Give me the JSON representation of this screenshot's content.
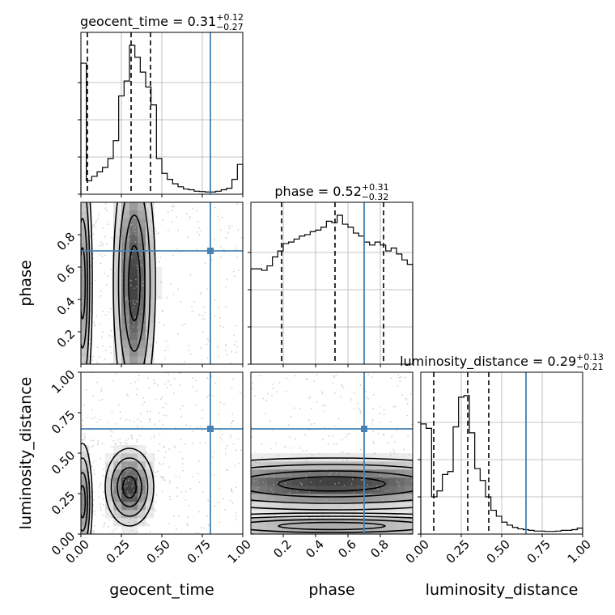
{
  "chart_data": {
    "type": "corner",
    "parameters": [
      {
        "name": "geocent_time",
        "axis_label": "geocent_time",
        "range": [
          0,
          1
        ],
        "ticks": [
          0,
          0.25,
          0.5,
          0.75,
          1
        ],
        "tick_labels": [
          "0.00",
          "0.25",
          "0.50",
          "0.75",
          "1.00"
        ],
        "title_prefix": "geocent_time = ",
        "median_text": "0.31",
        "plus": "+0.12",
        "minus": "−0.27",
        "quantiles": [
          0.04,
          0.31,
          0.43
        ],
        "truth": 0.8,
        "hist": [
          0.88,
          0.09,
          0.12,
          0.15,
          0.18,
          0.24,
          0.36,
          0.66,
          0.76,
          1.0,
          0.92,
          0.82,
          0.72,
          0.6,
          0.24,
          0.14,
          0.1,
          0.07,
          0.05,
          0.035,
          0.03,
          0.02,
          0.018,
          0.015,
          0.015,
          0.02,
          0.03,
          0.04,
          0.1,
          0.2
        ]
      },
      {
        "name": "phase",
        "axis_label": "phase",
        "range": [
          0,
          1
        ],
        "ticks": [
          0.2,
          0.4,
          0.6,
          0.8
        ],
        "tick_labels": [
          "0.2",
          "0.4",
          "0.6",
          "0.8"
        ],
        "title_prefix": "phase = ",
        "median_text": "0.52",
        "plus": "+0.31",
        "minus": "−0.32",
        "quantiles": [
          0.19,
          0.52,
          0.82
        ],
        "truth": 0.7,
        "hist": [
          0.64,
          0.64,
          0.63,
          0.66,
          0.72,
          0.76,
          0.81,
          0.82,
          0.84,
          0.86,
          0.87,
          0.89,
          0.9,
          0.92,
          0.96,
          0.95,
          1.0,
          0.94,
          0.92,
          0.88,
          0.86,
          0.82,
          0.8,
          0.82,
          0.8,
          0.76,
          0.78,
          0.74,
          0.7,
          0.67
        ]
      },
      {
        "name": "luminosity_distance",
        "axis_label": "luminosity_distance",
        "range": [
          0,
          1
        ],
        "ticks": [
          0,
          0.25,
          0.5,
          0.75,
          1
        ],
        "tick_labels": [
          "0.00",
          "0.25",
          "0.50",
          "0.75",
          "1.00"
        ],
        "title_prefix": "luminosity_distance = ",
        "median_text": "0.29",
        "plus": "+0.13",
        "minus": "−0.21",
        "quantiles": [
          0.08,
          0.29,
          0.42
        ],
        "truth": 0.65,
        "hist": [
          0.74,
          0.71,
          0.25,
          0.29,
          0.4,
          0.42,
          0.72,
          0.92,
          0.93,
          0.68,
          0.44,
          0.36,
          0.25,
          0.16,
          0.12,
          0.08,
          0.06,
          0.045,
          0.035,
          0.03,
          0.025,
          0.02,
          0.02,
          0.018,
          0.018,
          0.02,
          0.025,
          0.025,
          0.03,
          0.04
        ]
      }
    ],
    "joint": [
      {
        "x": "geocent_time",
        "y": "phase",
        "modes": [
          {
            "cx": 0.01,
            "cy": 0.5,
            "sx": 0.03,
            "sy": 0.4,
            "w": 0.6
          },
          {
            "cx": 0.33,
            "cy": 0.5,
            "sx": 0.065,
            "sy": 0.42,
            "w": 1.0
          }
        ]
      },
      {
        "x": "geocent_time",
        "y": "luminosity_distance",
        "modes": [
          {
            "cx": 0.01,
            "cy": 0.2,
            "sx": 0.03,
            "sy": 0.18,
            "w": 0.65
          },
          {
            "cx": 0.3,
            "cy": 0.29,
            "sx": 0.075,
            "sy": 0.12,
            "w": 1.0
          }
        ]
      },
      {
        "x": "phase",
        "y": "luminosity_distance",
        "modes": [
          {
            "cx": 0.5,
            "cy": 0.31,
            "sx": 0.6,
            "sy": 0.08,
            "w": 1.0
          },
          {
            "cx": 0.5,
            "cy": 0.05,
            "sx": 0.6,
            "sy": 0.04,
            "w": 0.5
          }
        ]
      }
    ],
    "truth_color": "#4682b4",
    "hist_color": "#000000",
    "scatter_color": "#b0b0b0",
    "grid": true
  }
}
